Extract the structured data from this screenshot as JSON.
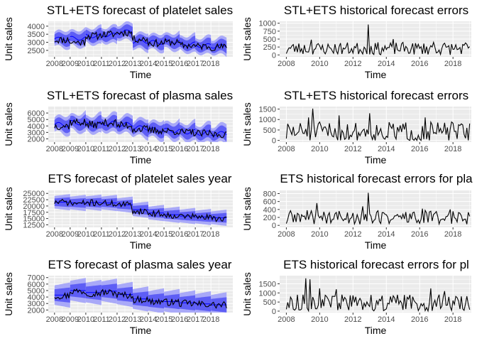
{
  "colors": {
    "panel_bg": "#ebebeb",
    "grid_major": "#ffffff",
    "line": "#000000",
    "forecast_mean": "#0000ff",
    "band_80": "#5e5ef5",
    "band_95": "#a9a9f8"
  },
  "chart_data": [
    {
      "type": "line",
      "title": "STL+ETS forecast of platelet sales",
      "xlabel": "Time",
      "ylabel": "Unit sales",
      "xlim": [
        2007.6,
        2019.4
      ],
      "ylim": [
        2100,
        4300
      ],
      "x_ticks": [
        2008,
        2009,
        2010,
        2011,
        2012,
        2013,
        2014,
        2015,
        2016,
        2017,
        2018
      ],
      "x_tick_labels": [
        "2008",
        "2009",
        "2010",
        "2011",
        "2012",
        "2013",
        "2014",
        "2015",
        "2016",
        "2017",
        "2018"
      ],
      "y_ticks": [
        2500,
        3000,
        3500,
        4000
      ],
      "y_tick_labels": [
        "2500",
        "3000",
        "3500",
        "4000"
      ],
      "forecast": {
        "start": 2008.0,
        "end": 2019.0,
        "seg_start": 2008.0,
        "seg_width": 1.0,
        "seg_count": 11,
        "level": [
          3200,
          3250,
          3400,
          3450,
          3650,
          3050,
          3000,
          3050,
          2900,
          2800,
          2750
        ],
        "pi80_half": 280,
        "pi95_half": 430,
        "widen": 0.4,
        "season_amp": 120
      },
      "actual": {
        "start": 2008.0,
        "end": 2019.0,
        "base": [
          3150,
          3000,
          3400,
          3500,
          3600,
          3200,
          2950,
          3000,
          2800,
          2750,
          2700
        ],
        "amp": 230,
        "seed": 11
      }
    },
    {
      "type": "line",
      "title": "STL+ETS historical forecast errors",
      "xlabel": "Time",
      "ylabel": "Unit sales",
      "xlim": [
        2007.6,
        2019.1
      ],
      "ylim": [
        -60,
        1060
      ],
      "x_ticks": [
        2008,
        2010,
        2012,
        2014,
        2016,
        2018
      ],
      "x_tick_labels": [
        "2008",
        "2010",
        "2012",
        "2014",
        "2016",
        "2018"
      ],
      "y_ticks": [
        0,
        250,
        500,
        750,
        1000
      ],
      "y_tick_labels": [
        "0",
        "250",
        "500",
        "750",
        "1000"
      ],
      "errors": {
        "start": 2008.0,
        "end": 2019.0,
        "typical": 220,
        "spread": 330,
        "seed": 23,
        "spikes": [
          [
            2012.92,
            960
          ],
          [
            2009.5,
            480
          ],
          [
            2014.4,
            500
          ],
          [
            2016.8,
            400
          ]
        ]
      }
    },
    {
      "type": "line",
      "title": "STL+ETS forecast of plasma sales",
      "xlabel": "Time",
      "ylabel": "Unit sales",
      "xlim": [
        2007.6,
        2019.4
      ],
      "ylim": [
        1500,
        7000
      ],
      "x_ticks": [
        2008,
        2009,
        2010,
        2011,
        2012,
        2013,
        2014,
        2015,
        2016,
        2017,
        2018
      ],
      "x_tick_labels": [
        "2008",
        "2009",
        "2010",
        "2011",
        "2012",
        "2013",
        "2014",
        "2015",
        "2016",
        "2017",
        "2018"
      ],
      "y_ticks": [
        2000,
        3000,
        4000,
        5000,
        6000
      ],
      "y_tick_labels": [
        "2000",
        "3000",
        "4000",
        "5000",
        "6000"
      ],
      "forecast": {
        "start": 2008.0,
        "end": 2019.0,
        "seg_start": 2008.0,
        "seg_width": 1.0,
        "seg_count": 11,
        "level": [
          4200,
          4500,
          4300,
          4400,
          4200,
          3700,
          3400,
          3300,
          3100,
          2900,
          2800
        ],
        "pi80_half": 700,
        "pi95_half": 1100,
        "widen": 0.5,
        "season_amp": 350
      },
      "actual": {
        "start": 2008.0,
        "end": 2019.0,
        "base": [
          4000,
          4600,
          4200,
          4500,
          4100,
          3500,
          3300,
          3200,
          3000,
          2800,
          2700
        ],
        "amp": 600,
        "seed": 37
      }
    },
    {
      "type": "line",
      "title": "STL+ETS historical forecast errors",
      "xlabel": "Time",
      "ylabel": "Unit sales",
      "xlim": [
        2007.6,
        2019.1
      ],
      "ylim": [
        -80,
        1620
      ],
      "x_ticks": [
        2008,
        2010,
        2012,
        2014,
        2016,
        2018
      ],
      "x_tick_labels": [
        "2008",
        "2010",
        "2012",
        "2014",
        "2016",
        "2018"
      ],
      "y_ticks": [
        0,
        500,
        1000,
        1500
      ],
      "y_tick_labels": [
        "0",
        "500",
        "1000",
        "1500"
      ],
      "errors": {
        "start": 2008.0,
        "end": 2019.0,
        "typical": 450,
        "spread": 800,
        "seed": 51,
        "spikes": [
          [
            2009.6,
            1520
          ],
          [
            2009.35,
            1100
          ],
          [
            2011.2,
            1200
          ],
          [
            2013.0,
            1300
          ],
          [
            2016.3,
            1100
          ]
        ]
      }
    },
    {
      "type": "line",
      "title": "ETS forecast of platelet sales year",
      "xlabel": "Time",
      "ylabel": "Unit sales",
      "xlim": [
        2007.6,
        2019.4
      ],
      "ylim": [
        11500,
        26200
      ],
      "x_ticks": [
        2008,
        2009,
        2010,
        2011,
        2012,
        2013,
        2014,
        2015,
        2016,
        2017,
        2018
      ],
      "x_tick_labels": [
        "2008",
        "2009",
        "2010",
        "2011",
        "2012",
        "2013",
        "2014",
        "2015",
        "2016",
        "2017",
        "2018"
      ],
      "y_ticks": [
        12500,
        15000,
        17500,
        20000,
        22500,
        25000
      ],
      "y_tick_labels": [
        "12500",
        "15000",
        "17500",
        "20000",
        "22500",
        "25000"
      ],
      "forecast": {
        "start": 2008.0,
        "end": 2019.0,
        "seg_start": 2008.0,
        "seg_width": 1.0,
        "seg_count": 11,
        "level": [
          21500,
          21200,
          21300,
          21200,
          20500,
          18500,
          17200,
          16500,
          16000,
          15600,
          15300
        ],
        "pi80_half": 1500,
        "pi95_half": 2500,
        "widen": 0.3,
        "season_amp": 0
      },
      "actual": {
        "start": 2008.0,
        "end": 2019.0,
        "base": [
          21500,
          21000,
          21300,
          21000,
          20500,
          18000,
          17000,
          16300,
          15900,
          15500,
          15100
        ],
        "amp": 1300,
        "seed": 71
      }
    },
    {
      "type": "line",
      "title": "ETS historical forecast errors for pla",
      "xlabel": "Time",
      "ylabel": "Unit sales",
      "xlim": [
        2007.6,
        2019.1
      ],
      "ylim": [
        -50,
        880
      ],
      "x_ticks": [
        2008,
        2010,
        2012,
        2014,
        2016,
        2018
      ],
      "x_tick_labels": [
        "2008",
        "2010",
        "2012",
        "2014",
        "2016",
        "2018"
      ],
      "y_ticks": [
        0,
        200,
        400,
        600,
        800
      ],
      "y_tick_labels": [
        "0",
        "200",
        "400",
        "600",
        "800"
      ],
      "errors": {
        "start": 2008.0,
        "end": 2019.0,
        "typical": 220,
        "spread": 300,
        "seed": 89,
        "spikes": [
          [
            2012.92,
            820
          ],
          [
            2009.8,
            560
          ],
          [
            2012.6,
            480
          ],
          [
            2016.2,
            420
          ],
          [
            2017.8,
            400
          ]
        ]
      }
    },
    {
      "type": "line",
      "title": "ETS forecast of plasma sales year",
      "xlabel": "Time",
      "ylabel": "Unit sales",
      "xlim": [
        2007.6,
        2019.4
      ],
      "ylim": [
        1600,
        7300
      ],
      "x_ticks": [
        2008,
        2009,
        2010,
        2011,
        2012,
        2013,
        2014,
        2015,
        2016,
        2017,
        2018
      ],
      "x_tick_labels": [
        "2008",
        "2009",
        "2010",
        "2011",
        "2012",
        "2013",
        "2014",
        "2015",
        "2016",
        "2017",
        "2018"
      ],
      "y_ticks": [
        2000,
        3000,
        4000,
        5000,
        6000,
        7000
      ],
      "y_tick_labels": [
        "2000",
        "3000",
        "4000",
        "5000",
        "6000",
        "7000"
      ],
      "forecast": {
        "start": 2008.0,
        "end": 2019.0,
        "seg_start": 2008.0,
        "seg_width": 1.0,
        "seg_count": 11,
        "level": [
          4300,
          5000,
          4700,
          4900,
          4400,
          3700,
          3400,
          3300,
          3100,
          2950,
          2800
        ],
        "pi80_half": 900,
        "pi95_half": 1500,
        "widen": 0.3,
        "season_amp": 0
      },
      "actual": {
        "start": 2008.0,
        "end": 2019.0,
        "base": [
          4200,
          4900,
          4600,
          4700,
          4300,
          3600,
          3300,
          3200,
          3000,
          2900,
          2750
        ],
        "amp": 550,
        "seed": 97
      }
    },
    {
      "type": "line",
      "title": "ETS historical forecast errors for pl",
      "xlabel": "Time",
      "ylabel": "Unit sales",
      "xlim": [
        2007.6,
        2019.1
      ],
      "ylim": [
        -80,
        1950
      ],
      "x_ticks": [
        2008,
        2010,
        2012,
        2014,
        2016,
        2018
      ],
      "x_tick_labels": [
        "2008",
        "2010",
        "2012",
        "2014",
        "2016",
        "2018"
      ],
      "y_ticks": [
        0,
        500,
        1000,
        1500
      ],
      "y_tick_labels": [
        "0",
        "500",
        "1000",
        "1500"
      ],
      "errors": {
        "start": 2008.0,
        "end": 2019.0,
        "typical": 500,
        "spread": 750,
        "seed": 113,
        "spikes": [
          [
            2009.2,
            1800
          ],
          [
            2009.45,
            1750
          ],
          [
            2010.0,
            1250
          ],
          [
            2011.0,
            1200
          ],
          [
            2016.7,
            1250
          ],
          [
            2017.5,
            1100
          ]
        ]
      }
    }
  ]
}
